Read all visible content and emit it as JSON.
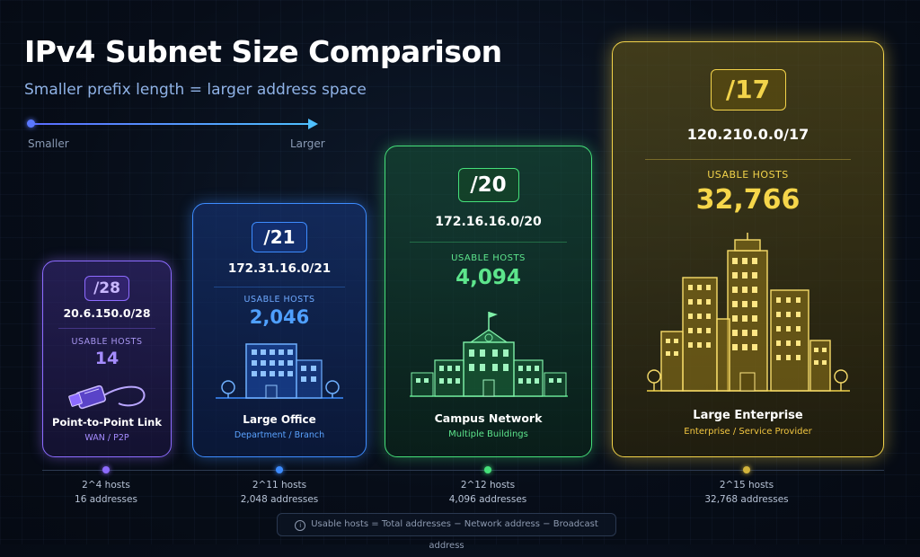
{
  "title": "IPv4 Subnet Size Comparison",
  "subtitle": "Smaller prefix length = larger address space",
  "scale": {
    "left_label": "Smaller",
    "right_label": "Larger"
  },
  "cards": [
    {
      "prefix": "/28",
      "network": "20.6.150.0/28",
      "usable_label": "USABLE HOSTS",
      "usable_hosts": "14",
      "caption": "Point-to-Point Link",
      "subcaption": "WAN / P2P",
      "illustration": "ethernet-cable-icon",
      "color": "#8d6bff"
    },
    {
      "prefix": "/21",
      "network": "172.31.16.0/21",
      "usable_label": "USABLE HOSTS",
      "usable_hosts": "2,046",
      "caption": "Large Office",
      "subcaption": "Department / Branch",
      "illustration": "office-building-icon",
      "color": "#3d8cff"
    },
    {
      "prefix": "/20",
      "network": "172.16.16.0/20",
      "usable_label": "USABLE HOSTS",
      "usable_hosts": "4,094",
      "caption": "Campus Network",
      "subcaption": "Multiple Buildings",
      "illustration": "campus-icon",
      "color": "#45e07a"
    },
    {
      "prefix": "/17",
      "network": "120.210.0.0/17",
      "usable_label": "USABLE HOSTS",
      "usable_hosts": "32,766",
      "caption": "Large Enterprise",
      "subcaption": "Enterprise / Service Provider",
      "illustration": "city-skyline-icon",
      "color": "#f2d34a"
    }
  ],
  "axis_labels": [
    {
      "power": "2^4 hosts",
      "addresses": "16 addresses",
      "color": "#8d6bff"
    },
    {
      "power": "2^11 hosts",
      "addresses": "2,048 addresses",
      "color": "#3d8cff"
    },
    {
      "power": "2^12 hosts",
      "addresses": "4,096 addresses",
      "color": "#45e07a"
    },
    {
      "power": "2^15 hosts",
      "addresses": "32,768 addresses",
      "color": "#d2b43c"
    }
  ],
  "footnote": "Usable hosts = Total addresses − Network address − Broadcast address"
}
